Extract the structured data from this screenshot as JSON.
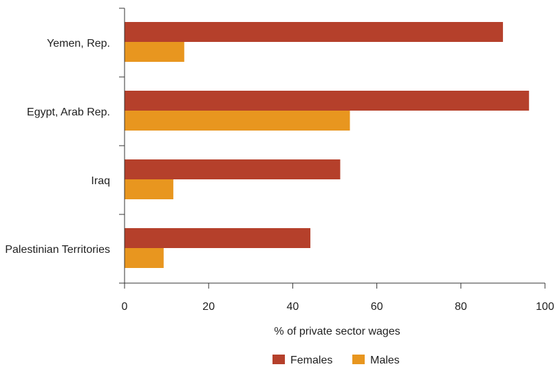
{
  "chart_data": {
    "type": "bar",
    "orientation": "horizontal",
    "categories": [
      "Yemen, Rep.",
      "Egypt, Arab Rep.",
      "Iraq",
      "Palestinian Territories"
    ],
    "series": [
      {
        "name": "Females",
        "values": [
          90,
          96.2,
          51.3,
          44.2
        ],
        "color": "#b5402b"
      },
      {
        "name": "Males",
        "values": [
          14.2,
          53.6,
          11.6,
          9.3
        ],
        "color": "#e8961f"
      }
    ],
    "xlabel": "% of private sector wages",
    "ylabel": "",
    "xlim": [
      0,
      100
    ],
    "xticks": [
      "0",
      "20",
      "40",
      "60",
      "80",
      "100"
    ],
    "grid": false,
    "legend_position": "bottom-center"
  }
}
